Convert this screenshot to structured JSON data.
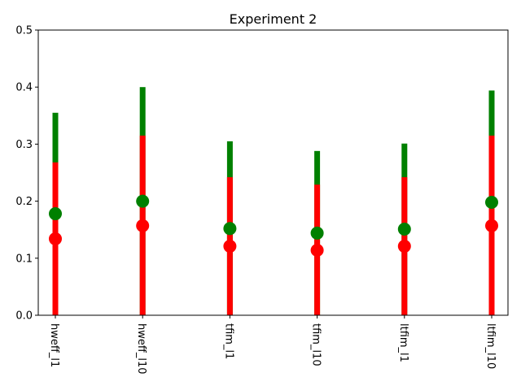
{
  "chart_data": {
    "type": "scatter",
    "title": "Experiment 2",
    "xlabel": "",
    "ylabel": "",
    "categories": [
      "hweff_l1",
      "hweff_l10",
      "tfim_l1",
      "tfim_l10",
      "ltfim_l1",
      "ltfim_l10"
    ],
    "ylim": [
      0,
      0.5
    ],
    "yticks": [
      "0.0",
      "0.1",
      "0.2",
      "0.3",
      "0.4",
      "0.5"
    ],
    "grid": false,
    "series": [
      {
        "color": "#008000",
        "values": [
          0.178,
          0.2,
          0.152,
          0.144,
          0.151,
          0.198
        ],
        "upper": [
          0.355,
          0.4,
          0.305,
          0.288,
          0.301,
          0.394
        ]
      },
      {
        "color": "#ff0000",
        "values": [
          0.134,
          0.157,
          0.121,
          0.114,
          0.121,
          0.157
        ],
        "upper": [
          0.268,
          0.315,
          0.242,
          0.229,
          0.242,
          0.315
        ]
      }
    ]
  }
}
